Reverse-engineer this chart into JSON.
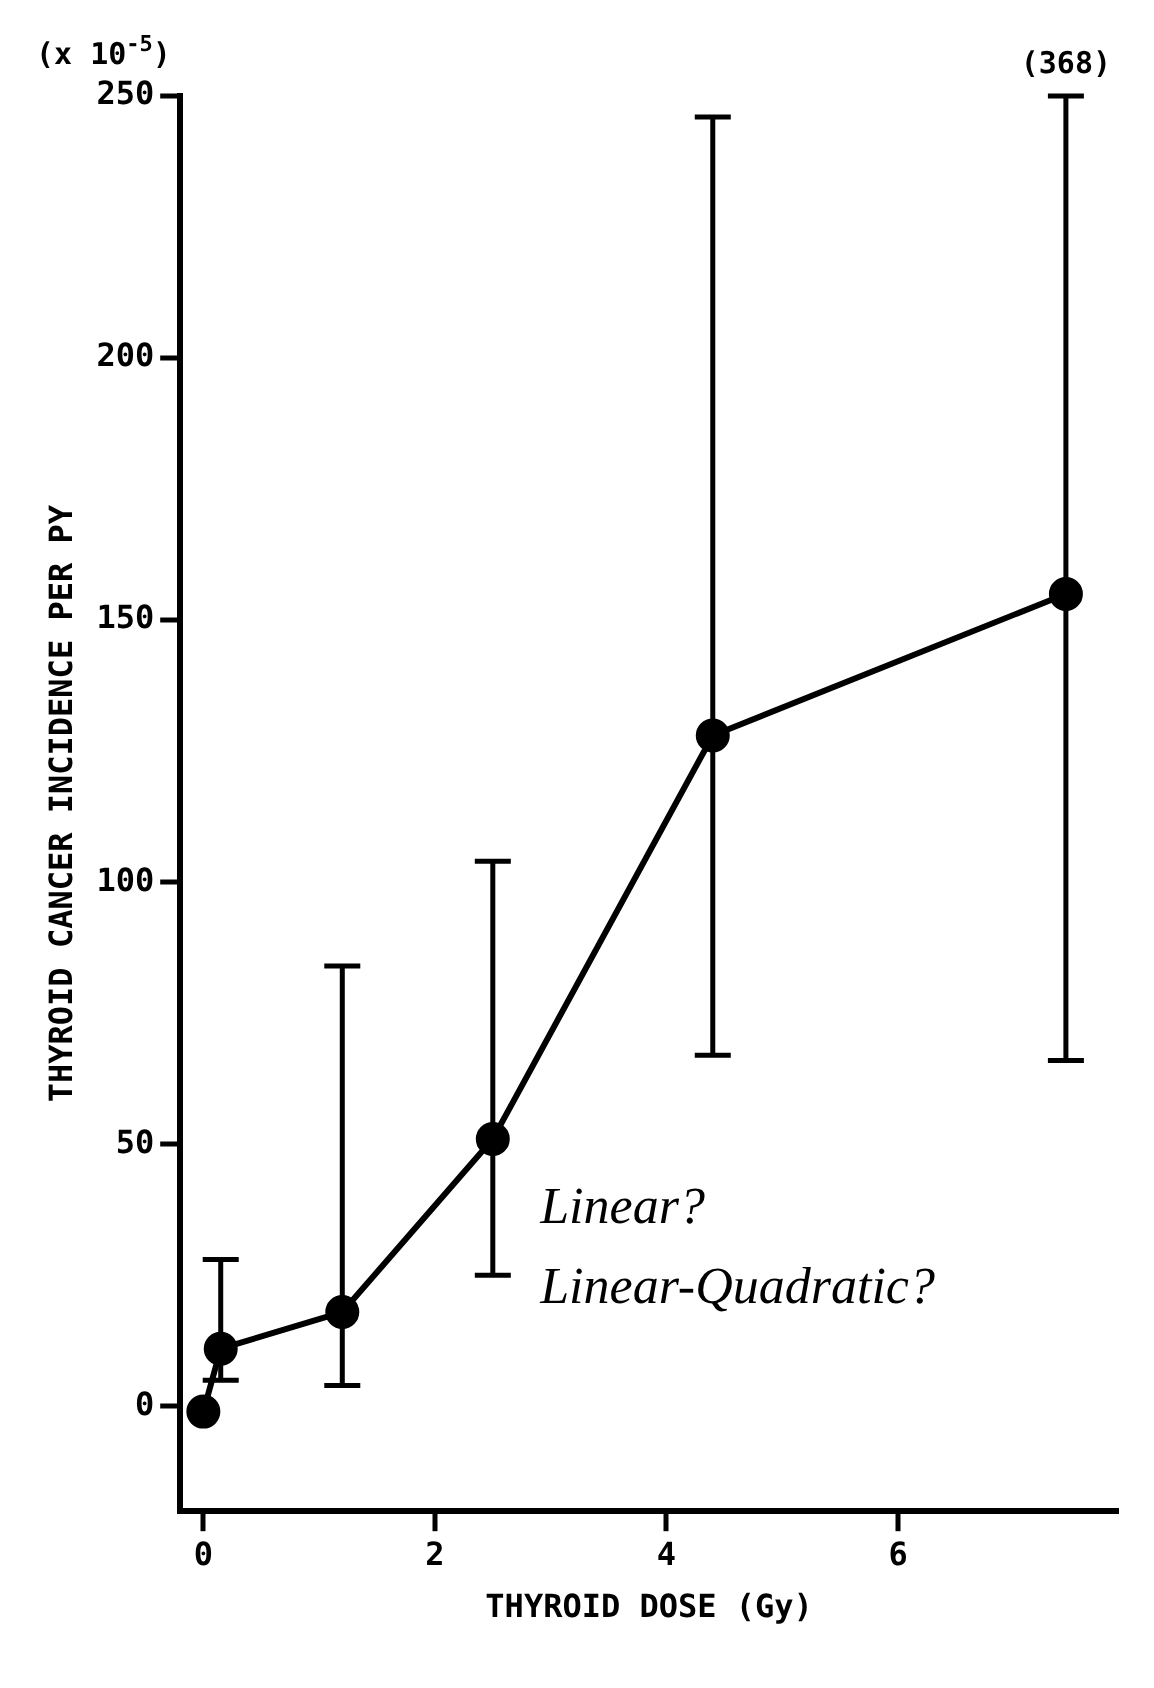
{
  "chart_data": {
    "type": "line",
    "xlabel": "THYROID DOSE (Gy)",
    "ylabel": "THYROID CANCER INCIDENCE PER PY",
    "x": [
      0,
      0.15,
      1.2,
      2.5,
      4.4,
      7.45
    ],
    "series": [
      {
        "color": "#000000",
        "values": [
          -1,
          11,
          18,
          51,
          128,
          155
        ],
        "errors": [
          null,
          [
            5,
            28
          ],
          [
            4,
            84
          ],
          [
            25,
            104
          ],
          [
            67,
            246
          ],
          [
            66,
            250
          ]
        ]
      }
    ],
    "xlim": [
      -0.2,
      7.9
    ],
    "xticks": [
      0,
      2,
      4,
      6
    ],
    "ylim": [
      -20,
      250
    ],
    "yticks": [
      0,
      50,
      100,
      150,
      200,
      250
    ],
    "marker": "circle",
    "line_style": "solid",
    "grid": false,
    "legend": false,
    "annotations": [
      "(x 10$^{-5}$)",
      {
        "text": "(368)",
        "x": 7.45,
        "y": 250
      },
      "Linear?",
      "Linear-Quadratic?"
    ]
  }
}
